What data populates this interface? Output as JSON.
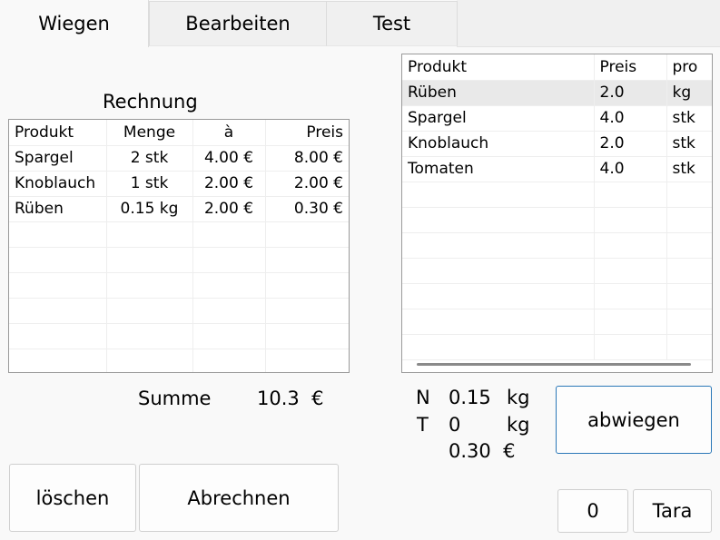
{
  "tabs": [
    {
      "label": "Wiegen"
    },
    {
      "label": "Bearbeiten"
    },
    {
      "label": "Test"
    }
  ],
  "invoice": {
    "title": "Rechnung",
    "columns": [
      "Produkt",
      "Menge",
      "à",
      "Preis"
    ],
    "rows": [
      {
        "product": "Spargel",
        "qty": "2  stk",
        "unit_price": "4.00 €",
        "price": "8.00 €"
      },
      {
        "product": "Knoblauch",
        "qty": "1  stk",
        "unit_price": "2.00 €",
        "price": "2.00 €"
      },
      {
        "product": "Rüben",
        "qty": "0.15  kg",
        "unit_price": "2.00 €",
        "price": "0.30 €"
      }
    ],
    "sum_label": "Summe",
    "sum_value": "10.3  €"
  },
  "products": {
    "columns": [
      "Produkt",
      "Preis",
      "pro"
    ],
    "rows": [
      {
        "product": "Rüben",
        "price": "2.0",
        "unit": "kg"
      },
      {
        "product": "Spargel",
        "price": "4.0",
        "unit": "stk"
      },
      {
        "product": "Knoblauch",
        "price": "2.0",
        "unit": "stk"
      },
      {
        "product": "Tomaten",
        "price": "4.0",
        "unit": "stk"
      }
    ]
  },
  "scale": {
    "net_label": "N",
    "net_value": "0.15",
    "net_unit": "kg",
    "tare_label": "T",
    "tare_value": "0",
    "tare_unit": "kg",
    "price_value": "0.30  €"
  },
  "buttons": {
    "weigh": "abwiegen",
    "delete": "löschen",
    "checkout": "Abrechnen",
    "zero": "0",
    "tare": "Tara"
  }
}
